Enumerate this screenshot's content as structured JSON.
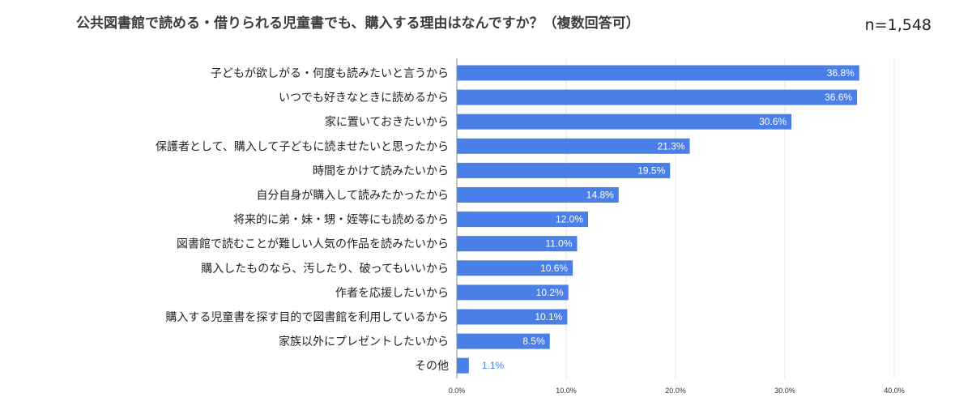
{
  "header": {
    "title": "公共図書館で読める・借りられる児童書でも、購入する理由はなんですか？（複数回答可）",
    "sample_size": "n=1,548"
  },
  "colors": {
    "bar": "#4a7fe8",
    "grid": "#e4e4e4",
    "axis": "#888888"
  },
  "chart_data": {
    "type": "bar",
    "orientation": "horizontal",
    "title": "公共図書館で読める・借りられる児童書でも、購入する理由はなんですか？（複数回答可）",
    "categories": [
      "子どもが欲しがる・何度も読みたいと言うから",
      "いつでも好きなときに読めるから",
      "家に置いておきたいから",
      "保護者として、購入して子どもに読ませたいと思ったから",
      "時間をかけて読みたいから",
      "自分自身が購入して読みたかったから",
      "将来的に弟・妹・甥・姪等にも読めるから",
      "図書館で読むことが難しい人気の作品を読みたいから",
      "購入したものなら、汚したり、破ってもいいから",
      "作者を応援したいから",
      "購入する児童書を探す目的で図書館を利用しているから",
      "家族以外にプレゼントしたいから",
      "その他"
    ],
    "values": [
      36.8,
      36.6,
      30.6,
      21.3,
      19.5,
      14.8,
      12.0,
      11.0,
      10.6,
      10.2,
      10.1,
      8.5,
      1.1
    ],
    "value_labels": [
      "36.8%",
      "36.6%",
      "30.6%",
      "21.3%",
      "19.5%",
      "14.8%",
      "12.0%",
      "11.0%",
      "10.6%",
      "10.2%",
      "10.1%",
      "8.5%",
      "1.1%"
    ],
    "xlim": [
      0,
      40
    ],
    "xticks": [
      0,
      10,
      20,
      30,
      40
    ],
    "xtick_labels": [
      "0.0%",
      "10.0%",
      "20.0%",
      "30.0%",
      "40.0%"
    ],
    "grid": true,
    "legend": "none"
  }
}
